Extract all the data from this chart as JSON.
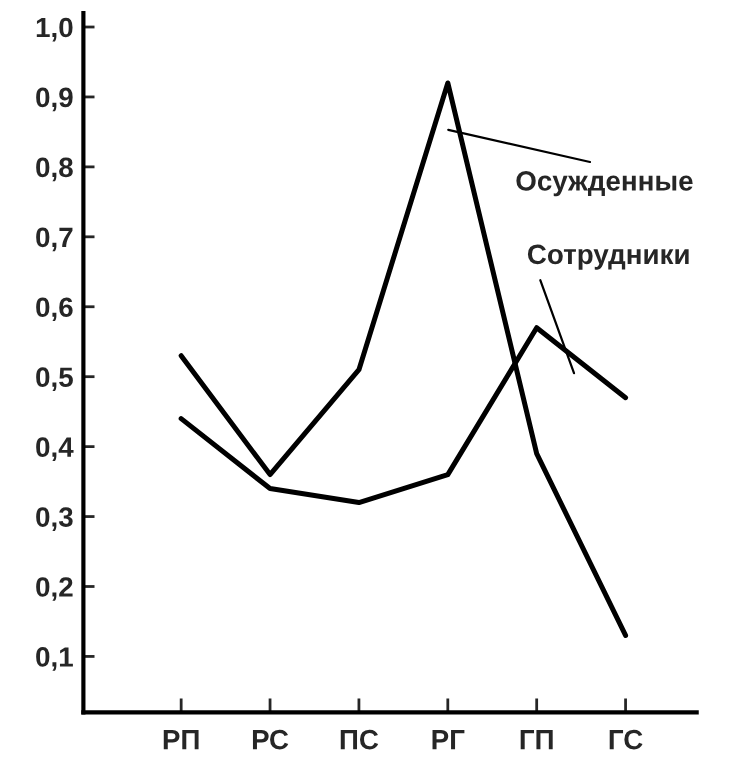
{
  "chart_data": {
    "type": "line",
    "categories": [
      "РП",
      "РС",
      "ПС",
      "РГ",
      "ГП",
      "ГС"
    ],
    "series": [
      {
        "name": "Осужденные",
        "color": "#000000",
        "values": [
          0.53,
          0.36,
          0.51,
          0.92,
          0.39,
          0.13
        ]
      },
      {
        "name": "Сотрудники",
        "color": "#000000",
        "values": [
          0.44,
          0.34,
          0.32,
          0.36,
          0.57,
          0.47
        ]
      }
    ],
    "ylim": [
      0.02,
      1.02
    ],
    "yticks": [
      {
        "value": 0.1,
        "label": "0,1"
      },
      {
        "value": 0.2,
        "label": "0,2"
      },
      {
        "value": 0.3,
        "label": "0,3"
      },
      {
        "value": 0.4,
        "label": "0,4"
      },
      {
        "value": 0.5,
        "label": "0,5"
      },
      {
        "value": 0.6,
        "label": "0,6"
      },
      {
        "value": 0.7,
        "label": "0,7"
      },
      {
        "value": 0.8,
        "label": "0,8"
      },
      {
        "value": 0.9,
        "label": "0,9"
      },
      {
        "value": 1.0,
        "label": "1,0"
      }
    ],
    "grid": false,
    "legend": false,
    "marker": "none",
    "line_style": "solid"
  }
}
